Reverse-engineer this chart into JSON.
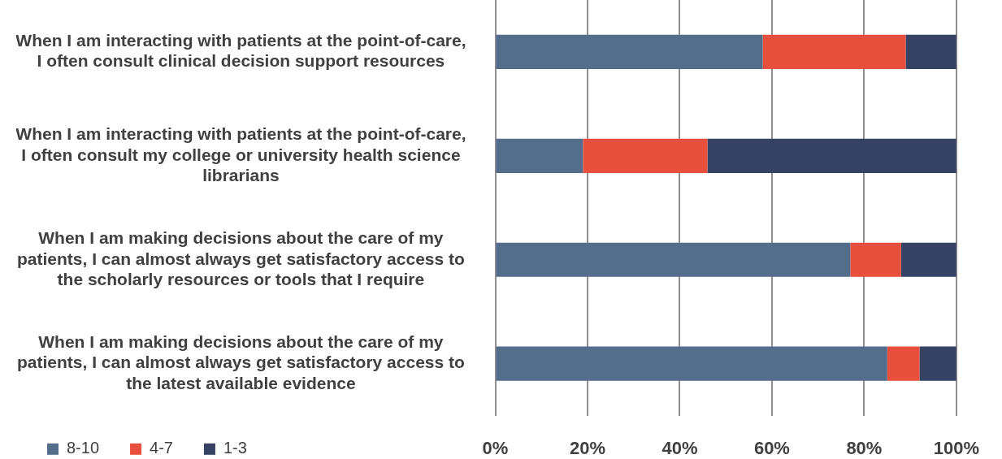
{
  "chart_data": {
    "type": "bar",
    "orientation": "horizontal",
    "stacked": true,
    "categories": [
      "When I am interacting with patients at the point-of-care, I often consult clinical decision support resources",
      "When I am interacting with patients at the point-of-care, I often consult my college or university health science librarians",
      "When I am making decisions about the care of my patients, I can almost always get satisfactory access to the scholarly resources or tools that I require",
      "When I am making decisions about the care of my patients, I can almost always get satisfactory access to the latest available evidence"
    ],
    "series": [
      {
        "name": "8-10",
        "color": "#536d8a",
        "values": [
          58,
          19,
          77,
          85
        ]
      },
      {
        "name": "4-7",
        "color": "#e8503d",
        "values": [
          31,
          27,
          11,
          7
        ]
      },
      {
        "name": "1-3",
        "color": "#364263",
        "values": [
          11,
          54,
          12,
          8
        ]
      }
    ],
    "xlim": [
      0,
      100
    ],
    "xticks": [
      {
        "value": 0,
        "label": "0%"
      },
      {
        "value": 20,
        "label": "20%"
      },
      {
        "value": 40,
        "label": "40%"
      },
      {
        "value": 60,
        "label": "60%"
      },
      {
        "value": 80,
        "label": "80%"
      },
      {
        "value": 100,
        "label": "100%"
      }
    ],
    "grid": "x",
    "legend": "bottom left"
  }
}
